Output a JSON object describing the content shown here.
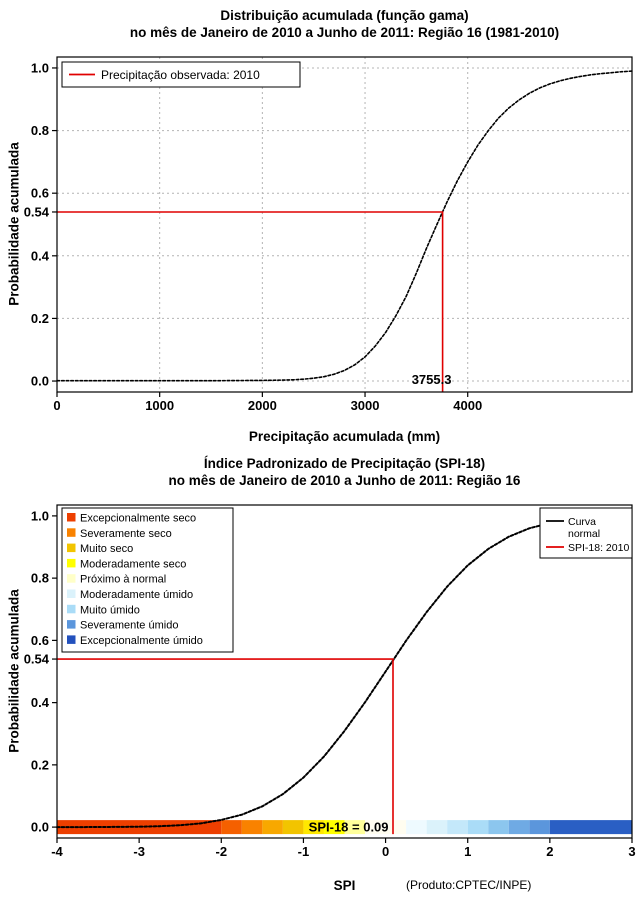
{
  "footer": {
    "credit": "(Produto:CPTEC/INPE)"
  },
  "chart_data": [
    {
      "type": "line",
      "title": "Distribuição acumulada (função gama)",
      "subtitle": "no mês de Janeiro de 2010 a Junho de 2011: Região 16 (1981-2010)",
      "xlabel": "Precipitação acumulada (mm)",
      "ylabel": "Probabilidade acumulada",
      "xlim": [
        0,
        5600
      ],
      "ylim": [
        0,
        1
      ],
      "grid": true,
      "xticks": [
        0,
        1000,
        2000,
        3000,
        4000
      ],
      "yticks": [
        0,
        0.2,
        0.4,
        0.6,
        0.8,
        1.0
      ],
      "ytick_labels": [
        "0.0",
        "0.2",
        "0.4",
        "0.6",
        "0.8",
        "1.0"
      ],
      "legend_items": [
        {
          "label": "Precipitação observada: 2010",
          "color": "#e00000"
        }
      ],
      "marker": {
        "x": 3755.3,
        "y": 0.54,
        "x_label": "3755.3",
        "y_label": "0.54",
        "color": "#e00000"
      },
      "series": [
        {
          "name": "Distribuição gama acumulada",
          "color": "#000000",
          "x": [
            0,
            500,
            1000,
            1500,
            2000,
            2200,
            2300,
            2400,
            2500,
            2600,
            2700,
            2800,
            2900,
            3000,
            3100,
            3200,
            3300,
            3400,
            3500,
            3600,
            3700,
            3800,
            3900,
            4000,
            4100,
            4200,
            4300,
            4400,
            4500,
            4600,
            4700,
            4800,
            4900,
            5000,
            5100,
            5200,
            5300,
            5400,
            5500,
            5600
          ],
          "y": [
            0.001,
            0.001,
            0.001,
            0.001,
            0.002,
            0.003,
            0.004,
            0.006,
            0.009,
            0.014,
            0.022,
            0.034,
            0.052,
            0.077,
            0.112,
            0.155,
            0.208,
            0.27,
            0.345,
            0.425,
            0.5,
            0.573,
            0.64,
            0.7,
            0.754,
            0.8,
            0.84,
            0.872,
            0.898,
            0.919,
            0.936,
            0.949,
            0.959,
            0.967,
            0.973,
            0.978,
            0.982,
            0.985,
            0.988,
            0.99
          ]
        }
      ]
    },
    {
      "type": "line",
      "title": "Índice Padronizado de Precipitação (SPI-18)",
      "subtitle": "no mês de Janeiro de 2010 a Junho de 2011: Região 16",
      "xlabel": "SPI",
      "ylabel": "Probabilidade acumulada",
      "xlim": [
        -4,
        3
      ],
      "ylim": [
        0,
        1
      ],
      "grid": false,
      "xticks": [
        -4,
        -3,
        -2,
        -1,
        0,
        1,
        2,
        3
      ],
      "yticks": [
        0,
        0.2,
        0.4,
        0.6,
        0.8,
        1.0
      ],
      "ytick_labels": [
        "0.0",
        "0.2",
        "0.4",
        "0.6",
        "0.8",
        "1.0"
      ],
      "category_legend": [
        {
          "label": "Excepcionalmente seco",
          "color": "#ed3f00"
        },
        {
          "label": "Severamente seco",
          "color": "#f98200"
        },
        {
          "label": "Muito seco",
          "color": "#f2c400"
        },
        {
          "label": "Moderadamente seco",
          "color": "#ffff00"
        },
        {
          "label": "Próximo à normal",
          "color": "#ffffc8"
        },
        {
          "label": "Moderadamente úmido",
          "color": "#dbf2fb"
        },
        {
          "label": "Muito úmido",
          "color": "#aadcf7"
        },
        {
          "label": "Severamente úmido",
          "color": "#5b96dc"
        },
        {
          "label": "Excepcionalmente úmido",
          "color": "#2351bd"
        }
      ],
      "line_legend": [
        {
          "lines": [
            "Curva",
            "normal"
          ],
          "color": "#000000"
        },
        {
          "lines": [
            "SPI-18: 2010"
          ],
          "color": "#e00000"
        }
      ],
      "marker": {
        "x": 0.09,
        "y": 0.54,
        "label": "SPI-18 = 0.09",
        "y_label": "0.54",
        "color": "#e00000"
      },
      "colorbar": [
        {
          "from": -4,
          "to": -2,
          "color": "#ed3f00"
        },
        {
          "from": -2,
          "to": -1.75,
          "color": "#f56000"
        },
        {
          "from": -1.75,
          "to": -1.5,
          "color": "#f98200"
        },
        {
          "from": -1.5,
          "to": -1.25,
          "color": "#f8a800"
        },
        {
          "from": -1.25,
          "to": -1,
          "color": "#f2c400"
        },
        {
          "from": -1,
          "to": -0.75,
          "color": "#ffe800"
        },
        {
          "from": -0.75,
          "to": -0.5,
          "color": "#ffff00"
        },
        {
          "from": -0.5,
          "to": -0.25,
          "color": "#ffff9b"
        },
        {
          "from": -0.25,
          "to": 0.25,
          "color": "#fffdf0"
        },
        {
          "from": 0.25,
          "to": 0.5,
          "color": "#eefaff"
        },
        {
          "from": 0.5,
          "to": 0.75,
          "color": "#dbf2fb"
        },
        {
          "from": 0.75,
          "to": 1,
          "color": "#c4e8fa"
        },
        {
          "from": 1,
          "to": 1.25,
          "color": "#aadcf7"
        },
        {
          "from": 1.25,
          "to": 1.5,
          "color": "#8cc6ee"
        },
        {
          "from": 1.5,
          "to": 1.75,
          "color": "#6faae4"
        },
        {
          "from": 1.75,
          "to": 2,
          "color": "#5b96dc"
        },
        {
          "from": 2,
          "to": 3,
          "color": "#2a5fc4"
        }
      ],
      "series": [
        {
          "name": "Curva normal acumulada",
          "color": "#000000",
          "x": [
            -4,
            -3.75,
            -3.5,
            -3.25,
            -3,
            -2.75,
            -2.5,
            -2.25,
            -2,
            -1.75,
            -1.5,
            -1.25,
            -1,
            -0.75,
            -0.5,
            -0.25,
            0,
            0.25,
            0.5,
            0.75,
            1,
            1.25,
            1.5,
            1.75,
            2,
            2.25,
            2.5,
            2.75,
            3
          ],
          "y": [
            0.0,
            0.0001,
            0.0002,
            0.0006,
            0.0013,
            0.003,
            0.006,
            0.012,
            0.023,
            0.04,
            0.067,
            0.106,
            0.159,
            0.227,
            0.309,
            0.401,
            0.5,
            0.599,
            0.691,
            0.773,
            0.841,
            0.894,
            0.933,
            0.96,
            0.977,
            0.988,
            0.994,
            0.997,
            0.999
          ]
        }
      ]
    }
  ]
}
